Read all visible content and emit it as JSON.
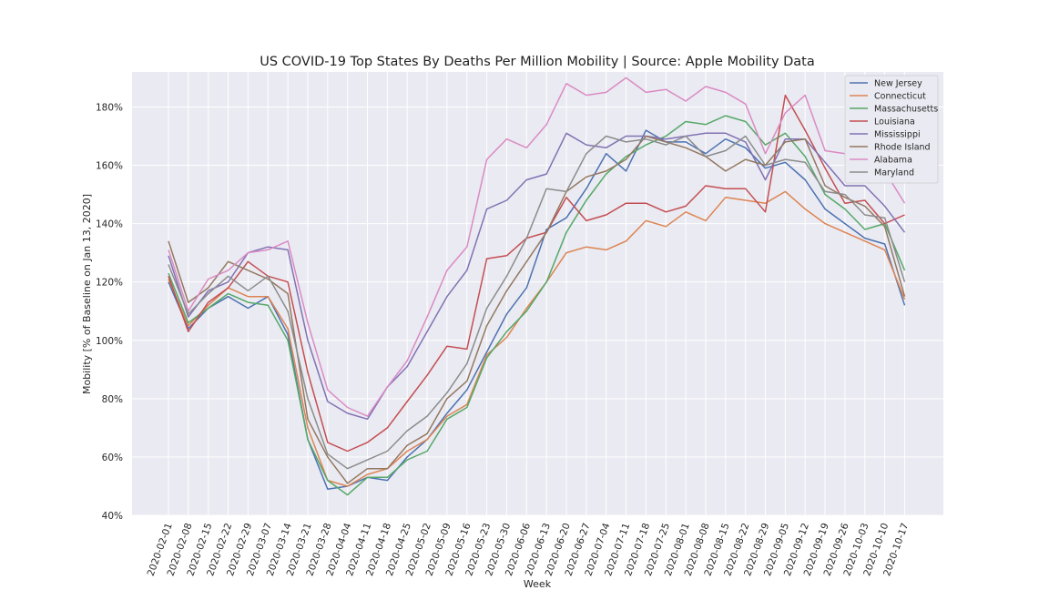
{
  "chart_data": {
    "type": "line",
    "title": "US COVID-19 Top States By Deaths Per Million Mobility  | Source: Apple Mobility Data",
    "xlabel": "Week",
    "ylabel": "Mobility [% of Baseline on Jan 13, 2020]",
    "ylim": [
      40,
      192
    ],
    "yticks": [
      40,
      60,
      80,
      100,
      120,
      140,
      160,
      180
    ],
    "ytick_suffix": "%",
    "grid": true,
    "legend_position": "top-right",
    "categories": [
      "2020-02-01",
      "2020-02-08",
      "2020-02-15",
      "2020-02-22",
      "2020-02-29",
      "2020-03-07",
      "2020-03-14",
      "2020-03-21",
      "2020-03-28",
      "2020-04-04",
      "2020-04-11",
      "2020-04-18",
      "2020-04-25",
      "2020-05-02",
      "2020-05-09",
      "2020-05-16",
      "2020-05-23",
      "2020-05-30",
      "2020-06-06",
      "2020-06-13",
      "2020-06-20",
      "2020-06-27",
      "2020-07-04",
      "2020-07-11",
      "2020-07-18",
      "2020-07-25",
      "2020-08-01",
      "2020-08-08",
      "2020-08-15",
      "2020-08-22",
      "2020-08-29",
      "2020-09-05",
      "2020-09-12",
      "2020-09-19",
      "2020-09-26",
      "2020-10-03",
      "2020-10-10",
      "2020-10-17"
    ],
    "series": [
      {
        "name": "New Jersey",
        "color": "#4c72b0",
        "values": [
          120,
          104,
          111,
          115,
          111,
          115,
          102,
          66,
          49,
          50,
          53,
          52,
          60,
          66,
          75,
          83,
          96,
          109,
          118,
          138,
          142,
          152,
          164,
          158,
          172,
          168,
          168,
          164,
          169,
          166,
          159,
          161,
          155,
          145,
          140,
          135,
          133,
          112
        ]
      },
      {
        "name": "Connecticut",
        "color": "#dd8452",
        "values": [
          121,
          105,
          112,
          118,
          115,
          115,
          104,
          70,
          52,
          50,
          54,
          56,
          62,
          66,
          74,
          78,
          95,
          101,
          111,
          120,
          130,
          132,
          131,
          134,
          141,
          139,
          144,
          141,
          149,
          148,
          147,
          151,
          145,
          140,
          137,
          134,
          131,
          114
        ]
      },
      {
        "name": "Massachusetts",
        "color": "#55a868",
        "values": [
          123,
          106,
          111,
          116,
          113,
          112,
          100,
          66,
          52,
          47,
          53,
          53,
          59,
          62,
          73,
          77,
          94,
          103,
          110,
          120,
          137,
          148,
          157,
          163,
          167,
          170,
          175,
          174,
          177,
          175,
          167,
          171,
          163,
          150,
          145,
          138,
          140,
          124
        ]
      },
      {
        "name": "Louisiana",
        "color": "#c44e52",
        "values": [
          122,
          103,
          113,
          118,
          127,
          122,
          120,
          89,
          65,
          62,
          65,
          70,
          79,
          88,
          98,
          97,
          128,
          129,
          135,
          137,
          149,
          141,
          143,
          147,
          147,
          144,
          146,
          153,
          152,
          152,
          144,
          184,
          172,
          159,
          147,
          148,
          140,
          143
        ]
      },
      {
        "name": "Mississippi",
        "color": "#8172b3",
        "values": [
          129,
          108,
          117,
          120,
          130,
          132,
          131,
          100,
          79,
          75,
          73,
          84,
          91,
          103,
          115,
          124,
          145,
          148,
          155,
          157,
          171,
          167,
          166,
          170,
          170,
          169,
          170,
          171,
          171,
          168,
          155,
          169,
          169,
          161,
          153,
          153,
          146,
          137
        ]
      },
      {
        "name": "Rhode Island",
        "color": "#937860",
        "values": [
          134,
          113,
          118,
          127,
          124,
          121,
          116,
          73,
          60,
          51,
          56,
          56,
          64,
          68,
          80,
          86,
          105,
          117,
          127,
          137,
          151,
          156,
          158,
          162,
          170,
          168,
          166,
          163,
          158,
          162,
          160,
          168,
          169,
          153,
          149,
          146,
          139,
          115
        ]
      },
      {
        "name": "Alabama",
        "color": "#da8bc3",
        "values": [
          131,
          110,
          121,
          124,
          130,
          131,
          134,
          106,
          83,
          77,
          74,
          84,
          93,
          108,
          124,
          132,
          162,
          169,
          166,
          174,
          188,
          184,
          185,
          190,
          185,
          186,
          182,
          187,
          185,
          181,
          164,
          178,
          184,
          165,
          164,
          165,
          158,
          147
        ]
      },
      {
        "name": "Maryland",
        "color": "#8c8c8c",
        "values": [
          126,
          109,
          116,
          122,
          117,
          122,
          110,
          80,
          61,
          56,
          59,
          62,
          69,
          74,
          82,
          92,
          111,
          122,
          135,
          152,
          151,
          164,
          170,
          168,
          169,
          167,
          170,
          163,
          165,
          170,
          160,
          162,
          161,
          151,
          150,
          143,
          142,
          120
        ]
      }
    ]
  }
}
